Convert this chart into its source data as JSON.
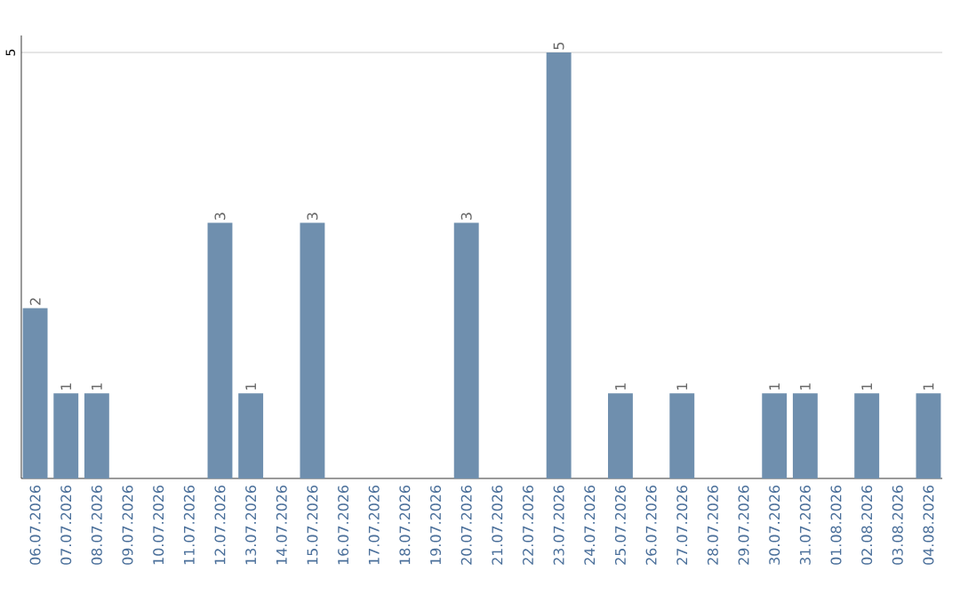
{
  "chart_data": {
    "type": "bar",
    "categories": [
      "06.07.2026",
      "07.07.2026",
      "08.07.2026",
      "09.07.2026",
      "10.07.2026",
      "11.07.2026",
      "12.07.2026",
      "13.07.2026",
      "14.07.2026",
      "15.07.2026",
      "16.07.2026",
      "17.07.2026",
      "18.07.2026",
      "19.07.2026",
      "20.07.2026",
      "21.07.2026",
      "22.07.2026",
      "23.07.2026",
      "24.07.2026",
      "25.07.2026",
      "26.07.2026",
      "27.07.2026",
      "28.07.2026",
      "29.07.2026",
      "30.07.2026",
      "31.07.2026",
      "01.08.2026",
      "02.08.2026",
      "03.08.2026",
      "04.08.2026"
    ],
    "values": [
      2,
      1,
      1,
      0,
      0,
      0,
      3,
      1,
      0,
      3,
      0,
      0,
      0,
      0,
      3,
      0,
      0,
      5,
      0,
      1,
      0,
      1,
      0,
      0,
      1,
      1,
      0,
      1,
      0,
      1
    ],
    "value_labels": [
      "2",
      "1",
      "1",
      null,
      null,
      null,
      "3",
      "1",
      null,
      "3",
      null,
      null,
      null,
      null,
      "3",
      null,
      null,
      "5",
      null,
      "1",
      null,
      "1",
      null,
      null,
      "1",
      "1",
      null,
      "1",
      null,
      "1"
    ],
    "color": "#6f8fae",
    "ylim": [
      0,
      5.2
    ],
    "yticks": [
      5
    ],
    "grid": "y"
  }
}
